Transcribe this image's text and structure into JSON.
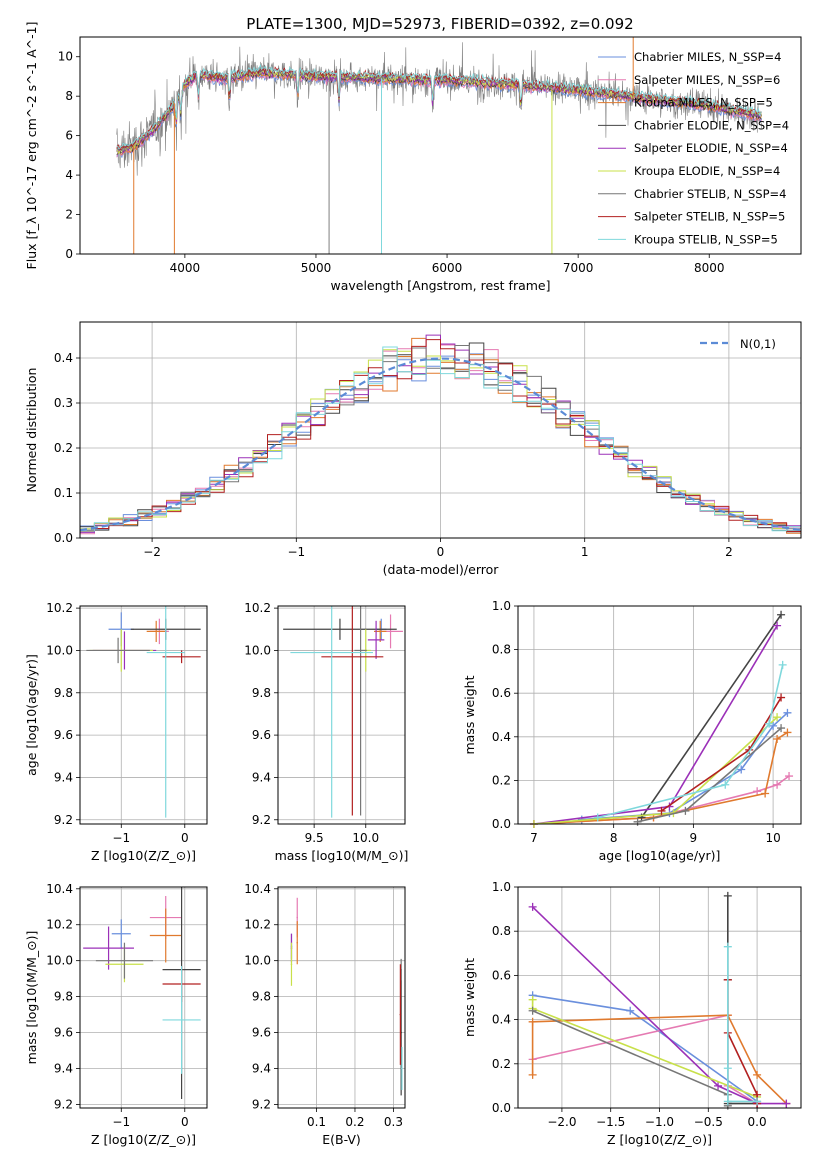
{
  "figure": {
    "title": "PLATE=1300, MJD=52973, FIBERID=0392, z=0.092"
  },
  "colors": {
    "chabrier_miles": "#6a8fdd",
    "salpeter_miles": "#e57ab2",
    "kroupa_miles": "#e07a2e",
    "chabrier_elodie": "#444444",
    "salpeter_elodie": "#9b30b8",
    "kroupa_elodie": "#c8e04a",
    "chabrier_stelib": "#777777",
    "salpeter_stelib": "#b22020",
    "kroupa_stelib": "#7fd8dc"
  },
  "chart_data": [
    {
      "id": "spectrum",
      "type": "line",
      "xlabel": "wavelength [Angstrom, rest frame]",
      "ylabel": "Flux [f_λ 10^-17 erg cm^-2 s^-1 A^-1]",
      "xlim": [
        3200,
        8700
      ],
      "ylim": [
        0,
        11
      ],
      "xticks": [
        4000,
        5000,
        6000,
        7000,
        8000
      ],
      "yticks": [
        0,
        2,
        4,
        6,
        8,
        10
      ],
      "grid": false,
      "legend_position": "right",
      "legend": [
        {
          "label": "Chabrier MILES, N_SSP=4",
          "color_key": "chabrier_miles"
        },
        {
          "label": "Salpeter MILES, N_SSP=6",
          "color_key": "salpeter_miles"
        },
        {
          "label": "Kroupa MILES, N_SSP=5",
          "color_key": "kroupa_miles"
        },
        {
          "label": "Chabrier ELODIE, N_SSP=4",
          "color_key": "chabrier_elodie"
        },
        {
          "label": "Salpeter ELODIE, N_SSP=4",
          "color_key": "salpeter_elodie"
        },
        {
          "label": "Kroupa ELODIE, N_SSP=4",
          "color_key": "kroupa_elodie"
        },
        {
          "label": "Chabrier STELIB, N_SSP=4",
          "color_key": "chabrier_stelib"
        },
        {
          "label": "Salpeter STELIB, N_SSP=5",
          "color_key": "salpeter_stelib"
        },
        {
          "label": "Kroupa STELIB, N_SSP=5",
          "color_key": "kroupa_stelib"
        }
      ],
      "data_range": [
        3480,
        8400
      ],
      "continuum": [
        [
          3480,
          5.2
        ],
        [
          3600,
          5.4
        ],
        [
          3750,
          6.2
        ],
        [
          3900,
          7.4
        ],
        [
          4000,
          8.6
        ],
        [
          4100,
          9.1
        ],
        [
          4300,
          8.9
        ],
        [
          4600,
          9.2
        ],
        [
          5000,
          9.0
        ],
        [
          5500,
          8.9
        ],
        [
          6000,
          8.8
        ],
        [
          6500,
          8.6
        ],
        [
          7000,
          8.3
        ],
        [
          7500,
          7.9
        ],
        [
          8000,
          7.5
        ],
        [
          8400,
          7.0
        ]
      ],
      "absorption_lines": [
        3934,
        3969,
        4102,
        4340,
        4861,
        5175,
        5890,
        6563
      ],
      "spikes": [
        [
          3610,
          0
        ],
        [
          3920,
          0
        ],
        [
          5100,
          0
        ],
        [
          5500,
          0
        ],
        [
          6800,
          0
        ],
        [
          7420,
          11
        ]
      ]
    },
    {
      "id": "residuals",
      "type": "step",
      "xlabel": "(data-model)/error",
      "ylabel": "Normed distribution",
      "xlim": [
        -2.5,
        2.5
      ],
      "ylim": [
        0,
        0.48
      ],
      "xticks": [
        -2,
        -1,
        0,
        1,
        2
      ],
      "yticks": [
        0.0,
        0.1,
        0.2,
        0.3,
        0.4
      ],
      "grid": true,
      "legend_position": "top-right",
      "reference_label": "N(0,1)",
      "reference_color": "#5b8bd6",
      "bin_width": 0.1,
      "x_start": -2.5
    },
    {
      "id": "age_vs_Z",
      "type": "errorbar",
      "xlabel": "Z [log10(Z/Z_⊙)]",
      "ylabel": "age  [log10(age/yr)]",
      "xlim": [
        -1.65,
        0.35
      ],
      "ylim": [
        9.18,
        10.21
      ],
      "xticks": [
        -1,
        0
      ],
      "yticks": [
        9.2,
        9.4,
        9.6,
        9.8,
        10.0,
        10.2
      ],
      "grid": true,
      "points": [
        {
          "color_key": "chabrier_miles",
          "x": -1.0,
          "xerr": 0.2,
          "y": 10.1,
          "yerr": 0.08
        },
        {
          "color_key": "salpeter_miles",
          "x": -0.4,
          "xerr": 0.15,
          "y": 10.09,
          "yerr": 0.06
        },
        {
          "color_key": "kroupa_miles",
          "x": -0.45,
          "xerr": 0.15,
          "y": 10.09,
          "yerr": 0.05
        },
        {
          "color_key": "chabrier_elodie",
          "x": -0.3,
          "xerr": 0.55,
          "y": 10.1,
          "yerr": 0.05
        },
        {
          "color_key": "salpeter_elodie",
          "x": -0.95,
          "xerr": 0.5,
          "y": 10.0,
          "yerr": 0.09
        },
        {
          "color_key": "kroupa_elodie",
          "x": -1.0,
          "xerr": 0.5,
          "y": 10.0,
          "yerr": 0.1
        },
        {
          "color_key": "chabrier_stelib",
          "x": -1.05,
          "xerr": 0.5,
          "y": 10.0,
          "yerr": 0.06
        },
        {
          "color_key": "salpeter_stelib",
          "x": -0.05,
          "xerr": 0.3,
          "y": 9.97,
          "yerr": 0.03
        },
        {
          "color_key": "kroupa_stelib",
          "x": -0.3,
          "xerr": 0.3,
          "y": 9.99,
          "yerr": 0.78
        }
      ]
    },
    {
      "id": "age_vs_mass",
      "type": "errorbar",
      "xlabel": "mass [log10(M/M_⊙)]",
      "ylabel": "",
      "xlim": [
        9.15,
        10.38
      ],
      "ylim": [
        9.18,
        10.21
      ],
      "xticks": [
        9.5,
        10.0
      ],
      "yticks": [
        9.2,
        9.4,
        9.6,
        9.8,
        10.0,
        10.2
      ],
      "grid": true,
      "points": [
        {
          "color_key": "chabrier_miles",
          "x": 10.15,
          "xerr": 0.05,
          "y": 10.1,
          "yerr": 0.05
        },
        {
          "color_key": "salpeter_miles",
          "x": 10.24,
          "xerr": 0.12,
          "y": 10.09,
          "yerr": 0.08
        },
        {
          "color_key": "kroupa_miles",
          "x": 10.14,
          "xerr": 0.06,
          "y": 10.09,
          "yerr": 0.05
        },
        {
          "color_key": "chabrier_elodie",
          "x": 9.75,
          "xerr": 0.55,
          "y": 10.1,
          "yerr": 0.05
        },
        {
          "color_key": "salpeter_elodie",
          "x": 10.1,
          "xerr": 0.08,
          "y": 10.05,
          "yerr": 0.09
        },
        {
          "color_key": "kroupa_elodie",
          "x": 10.0,
          "xerr": 0.05,
          "y": 10.0,
          "yerr": 0.1
        },
        {
          "color_key": "chabrier_stelib",
          "x": 9.95,
          "xerr": 0.06,
          "y": 10.0,
          "yerr": 0.78
        },
        {
          "color_key": "salpeter_stelib",
          "x": 9.87,
          "xerr": 0.3,
          "y": 9.97,
          "yerr": 0.75
        },
        {
          "color_key": "kroupa_stelib",
          "x": 9.67,
          "xerr": 0.4,
          "y": 9.99,
          "yerr": 0.78
        }
      ]
    },
    {
      "id": "massweight_vs_age",
      "type": "line",
      "xlabel": "age  [log10(age/yr)]",
      "ylabel": "mass weight",
      "xlim": [
        6.8,
        10.35
      ],
      "ylim": [
        0,
        1.0
      ],
      "xticks": [
        7,
        8,
        9,
        10
      ],
      "yticks": [
        0.0,
        0.2,
        0.4,
        0.6,
        0.8,
        1.0
      ],
      "grid": true,
      "series": [
        {
          "color_key": "chabrier_miles",
          "x": [
            7.6,
            8.7,
            9.6,
            10.0,
            10.18
          ],
          "y": [
            0.02,
            0.05,
            0.25,
            0.45,
            0.51
          ]
        },
        {
          "color_key": "salpeter_miles",
          "x": [
            7.0,
            8.5,
            9.8,
            10.05,
            10.2
          ],
          "y": [
            0.0,
            0.03,
            0.15,
            0.18,
            0.22
          ]
        },
        {
          "color_key": "kroupa_miles",
          "x": [
            7.0,
            8.5,
            9.9,
            10.05,
            10.18
          ],
          "y": [
            0.0,
            0.03,
            0.14,
            0.39,
            0.42
          ]
        },
        {
          "color_key": "chabrier_elodie",
          "x": [
            8.35,
            10.1
          ],
          "y": [
            0.03,
            0.96
          ]
        },
        {
          "color_key": "salpeter_elodie",
          "x": [
            7.0,
            8.7,
            10.05
          ],
          "y": [
            0.0,
            0.08,
            0.91
          ]
        },
        {
          "color_key": "kroupa_elodie",
          "x": [
            7.0,
            8.75,
            10.05
          ],
          "y": [
            0.0,
            0.05,
            0.49
          ]
        },
        {
          "color_key": "chabrier_stelib",
          "x": [
            8.3,
            8.9,
            10.1
          ],
          "y": [
            0.01,
            0.06,
            0.44
          ]
        },
        {
          "color_key": "salpeter_stelib",
          "x": [
            8.6,
            9.7,
            10.1
          ],
          "y": [
            0.06,
            0.34,
            0.58
          ]
        },
        {
          "color_key": "kroupa_stelib",
          "x": [
            7.8,
            9.4,
            9.95,
            10.12
          ],
          "y": [
            0.03,
            0.18,
            0.46,
            0.73
          ]
        }
      ]
    },
    {
      "id": "mass_vs_Z",
      "type": "errorbar",
      "xlabel": "Z [log10(Z/Z_⊙)]",
      "ylabel": "mass [log10(M/M_⊙)]",
      "xlim": [
        -1.65,
        0.35
      ],
      "ylim": [
        9.18,
        10.41
      ],
      "xticks": [
        -1,
        0
      ],
      "yticks": [
        9.2,
        9.4,
        9.6,
        9.8,
        10.0,
        10.2,
        10.4
      ],
      "grid": true,
      "points": [
        {
          "color_key": "chabrier_miles",
          "x": -1.0,
          "xerr": 0.15,
          "y": 10.15,
          "yerr": 0.08
        },
        {
          "color_key": "salpeter_miles",
          "x": -0.3,
          "xerr": 0.25,
          "y": 10.24,
          "yerr": 0.12
        },
        {
          "color_key": "kroupa_miles",
          "x": -0.3,
          "xerr": 0.25,
          "y": 10.14,
          "yerr": 0.15
        },
        {
          "color_key": "chabrier_elodie",
          "x": -0.05,
          "xerr": 0.3,
          "y": 9.95,
          "yerr": 0.72
        },
        {
          "color_key": "salpeter_elodie",
          "x": -1.2,
          "xerr": 0.4,
          "y": 10.07,
          "yerr": 0.12
        },
        {
          "color_key": "kroupa_elodie",
          "x": -0.95,
          "xerr": 0.3,
          "y": 9.98,
          "yerr": 0.1
        },
        {
          "color_key": "chabrier_stelib",
          "x": -0.95,
          "xerr": 0.45,
          "y": 10.0,
          "yerr": 0.1
        },
        {
          "color_key": "salpeter_stelib",
          "x": -0.05,
          "xerr": 0.3,
          "y": 9.87,
          "yerr": 0.1
        },
        {
          "color_key": "kroupa_stelib",
          "x": -0.05,
          "xerr": 0.3,
          "y": 9.67,
          "yerr": 0.3
        }
      ]
    },
    {
      "id": "mass_vs_ebv",
      "type": "errorbar",
      "xlabel": "E(B-V)",
      "ylabel": "",
      "xlim": [
        0.0,
        0.33
      ],
      "ylim": [
        9.18,
        10.41
      ],
      "xticks": [
        0.1,
        0.2,
        0.3
      ],
      "yticks": [
        9.2,
        9.4,
        9.6,
        9.8,
        10.0,
        10.2,
        10.4
      ],
      "grid": true,
      "points": [
        {
          "color_key": "chabrier_miles",
          "x": 0.035,
          "xerr": 0.002,
          "y": 10.08,
          "yerr": 0.07
        },
        {
          "color_key": "salpeter_miles",
          "x": 0.05,
          "xerr": 0.002,
          "y": 10.24,
          "yerr": 0.11
        },
        {
          "color_key": "kroupa_miles",
          "x": 0.05,
          "xerr": 0.002,
          "y": 10.1,
          "yerr": 0.12
        },
        {
          "color_key": "chabrier_elodie",
          "x": 0.32,
          "xerr": 0.002,
          "y": 9.6,
          "yerr": 0.35
        },
        {
          "color_key": "salpeter_elodie",
          "x": 0.035,
          "xerr": 0.002,
          "y": 10.07,
          "yerr": 0.08
        },
        {
          "color_key": "kroupa_elodie",
          "x": 0.035,
          "xerr": 0.002,
          "y": 9.98,
          "yerr": 0.12
        },
        {
          "color_key": "chabrier_stelib",
          "x": 0.32,
          "xerr": 0.002,
          "y": 9.95,
          "yerr": 0.06
        },
        {
          "color_key": "salpeter_stelib",
          "x": 0.318,
          "xerr": 0.002,
          "y": 9.7,
          "yerr": 0.28
        },
        {
          "color_key": "kroupa_stelib",
          "x": 0.322,
          "xerr": 0.002,
          "y": 9.4,
          "yerr": 0.12
        }
      ]
    },
    {
      "id": "massweight_vs_Z",
      "type": "line",
      "xlabel": "Z [log10(Z/Z_⊙)]",
      "ylabel": "mass weight",
      "xlim": [
        -2.45,
        0.45
      ],
      "ylim": [
        0,
        1.0
      ],
      "xticks": [
        -2.0,
        -1.5,
        -1.0,
        -0.5,
        0.0
      ],
      "yticks": [
        0.0,
        0.2,
        0.4,
        0.6,
        0.8,
        1.0
      ],
      "grid": true,
      "series": [
        {
          "color_key": "chabrier_miles",
          "x": [
            -2.3,
            -1.3,
            0.0
          ],
          "y": [
            0.51,
            0.44,
            0.03
          ]
        },
        {
          "color_key": "salpeter_miles",
          "x": [
            -2.3,
            -0.3,
            -0.3,
            0.0
          ],
          "y": [
            0.22,
            0.42,
            0.1,
            0.02
          ]
        },
        {
          "color_key": "kroupa_miles",
          "x": [
            -2.3,
            -2.3,
            -0.3,
            0.0,
            0.3
          ],
          "y": [
            0.15,
            0.39,
            0.42,
            0.15,
            0.02
          ]
        },
        {
          "color_key": "chabrier_elodie",
          "x": [
            -0.3,
            -0.3,
            -0.3,
            0.0
          ],
          "y": [
            0.96,
            0.58,
            0.02,
            0.02
          ]
        },
        {
          "color_key": "salpeter_elodie",
          "x": [
            -2.3,
            -0.4,
            0.0,
            0.3
          ],
          "y": [
            0.91,
            0.1,
            0.02,
            0.02
          ]
        },
        {
          "color_key": "kroupa_elodie",
          "x": [
            -2.3,
            -2.3,
            0.0
          ],
          "y": [
            0.49,
            0.45,
            0.05
          ]
        },
        {
          "color_key": "chabrier_stelib",
          "x": [
            -2.3,
            -0.3,
            -0.3
          ],
          "y": [
            0.44,
            0.06,
            0.01
          ]
        },
        {
          "color_key": "salpeter_stelib",
          "x": [
            -0.3,
            -0.3,
            0.0,
            0.0
          ],
          "y": [
            0.58,
            0.34,
            0.06,
            0.02
          ]
        },
        {
          "color_key": "kroupa_stelib",
          "x": [
            -0.3,
            -0.3,
            -0.3,
            0.0
          ],
          "y": [
            0.73,
            0.18,
            0.03,
            0.03
          ]
        }
      ]
    }
  ]
}
